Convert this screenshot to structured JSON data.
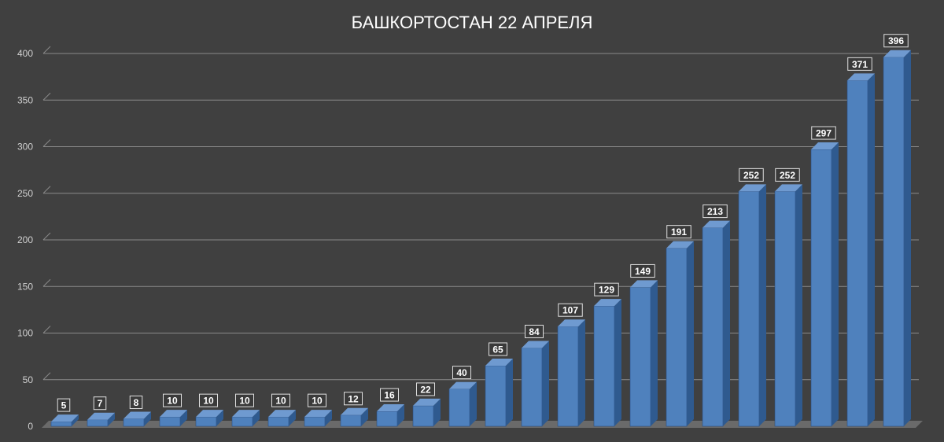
{
  "chart_data": {
    "type": "bar",
    "title": "БАШКОРТОСТАН 22 АПРЕЛЯ",
    "xlabel": "",
    "ylabel": "",
    "ylim": [
      0,
      400
    ],
    "yticks": [
      0,
      50,
      100,
      150,
      200,
      250,
      300,
      350,
      400
    ],
    "grid": true,
    "legend": "none",
    "values": [
      5,
      7,
      8,
      10,
      10,
      10,
      10,
      10,
      12,
      16,
      22,
      40,
      65,
      84,
      107,
      129,
      149,
      191,
      213,
      252,
      252,
      297,
      371,
      396
    ],
    "colors": {
      "background": "#404040",
      "bar_front": "#4f81bd",
      "bar_side": "#2f5a8f",
      "bar_top": "#6f9ad0",
      "grid": "#8a8a8a",
      "label_box": "#3a3a3a"
    }
  }
}
